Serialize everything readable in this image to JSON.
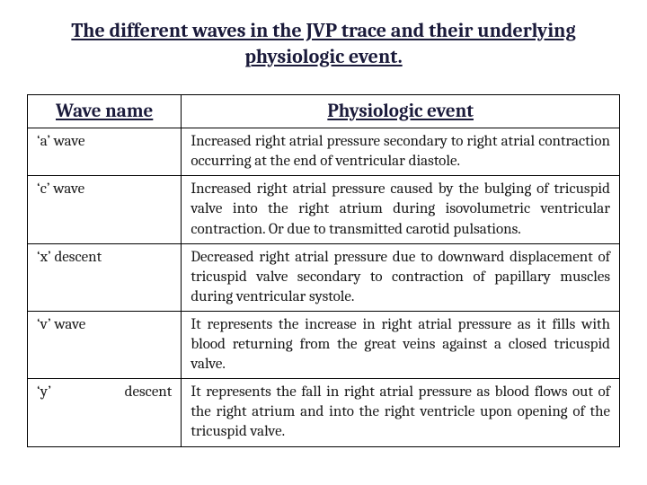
{
  "title": "The different waves in the JVP trace and their underlying physiologic event.",
  "table": {
    "headers": {
      "wave": "Wave name",
      "event": "Physiologic event"
    },
    "rows": [
      {
        "wave": "‘a’ wave",
        "event": "Increased right atrial pressure secondary to right atrial contraction occurring at the end of ventricular diastole."
      },
      {
        "wave": "‘c’ wave",
        "event": "Increased right atrial pressure caused by the bulging of tricuspid valve into the right atrium during isovolumetric ventricular contraction. Or due to transmitted carotid pulsations."
      },
      {
        "wave": "‘x’ descent",
        "event": "Decreased right atrial pressure due to downward displacement of tricuspid valve secondary to contraction of papillary muscles during ventricular systole."
      },
      {
        "wave": "‘v’ wave",
        "event": "It represents the increase in right atrial pressure as it fills with blood returning from the great veins against a closed tricuspid valve."
      },
      {
        "wave": "‘y’ descent",
        "event": "It represents the fall in right atrial pressure as blood flows out of the right atrium and into the right ventricle upon opening of the tricuspid valve."
      }
    ]
  },
  "style": {
    "title_color": "#1a1a3a",
    "header_color": "#1a1a3a",
    "body_text_color": "#1a1a1a",
    "border_color": "#000000",
    "background_color": "#ffffff",
    "title_fontsize": 22,
    "header_fontsize": 21,
    "body_fontsize": 17,
    "col_wave_width_pct": 26,
    "col_event_width_pct": 74
  }
}
